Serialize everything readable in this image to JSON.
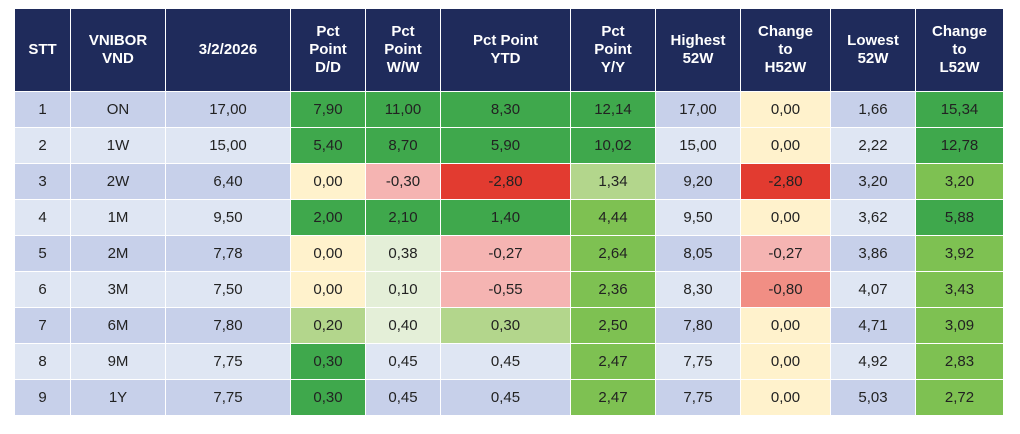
{
  "table": {
    "header": [
      "STT",
      "VNIBOR\nVND",
      "3/2/2026",
      "Pct\nPoint\nD/D",
      "Pct\nPoint\nW/W",
      "Pct Point\nYTD",
      "Pct\nPoint\nY/Y",
      "Highest\n52W",
      "Change\nto\nH52W",
      "Lowest\n52W",
      "Change\nto\nL52W"
    ],
    "rows": [
      [
        "1",
        "ON",
        "17,00",
        "7,90",
        "11,00",
        "8,30",
        "12,14",
        "17,00",
        "0,00",
        "1,66",
        "15,34"
      ],
      [
        "2",
        "1W",
        "15,00",
        "5,40",
        "8,70",
        "5,90",
        "10,02",
        "15,00",
        "0,00",
        "2,22",
        "12,78"
      ],
      [
        "3",
        "2W",
        "6,40",
        "0,00",
        "-0,30",
        "-2,80",
        "1,34",
        "9,20",
        "-2,80",
        "3,20",
        "3,20"
      ],
      [
        "4",
        "1M",
        "9,50",
        "2,00",
        "2,10",
        "1,40",
        "4,44",
        "9,50",
        "0,00",
        "3,62",
        "5,88"
      ],
      [
        "5",
        "2M",
        "7,78",
        "0,00",
        "0,38",
        "-0,27",
        "2,64",
        "8,05",
        "-0,27",
        "3,86",
        "3,92"
      ],
      [
        "6",
        "3M",
        "7,50",
        "0,00",
        "0,10",
        "-0,55",
        "2,36",
        "8,30",
        "-0,80",
        "4,07",
        "3,43"
      ],
      [
        "7",
        "6M",
        "7,80",
        "0,20",
        "0,40",
        "0,30",
        "2,50",
        "7,80",
        "0,00",
        "4,71",
        "3,09"
      ],
      [
        "8",
        "9M",
        "7,75",
        "0,30",
        "0,45",
        "0,45",
        "2,47",
        "7,75",
        "0,00",
        "4,92",
        "2,83"
      ],
      [
        "9",
        "1Y",
        "7,75",
        "0,30",
        "0,45",
        "0,45",
        "2,47",
        "7,75",
        "0,00",
        "5,03",
        "2,72"
      ]
    ]
  }
}
